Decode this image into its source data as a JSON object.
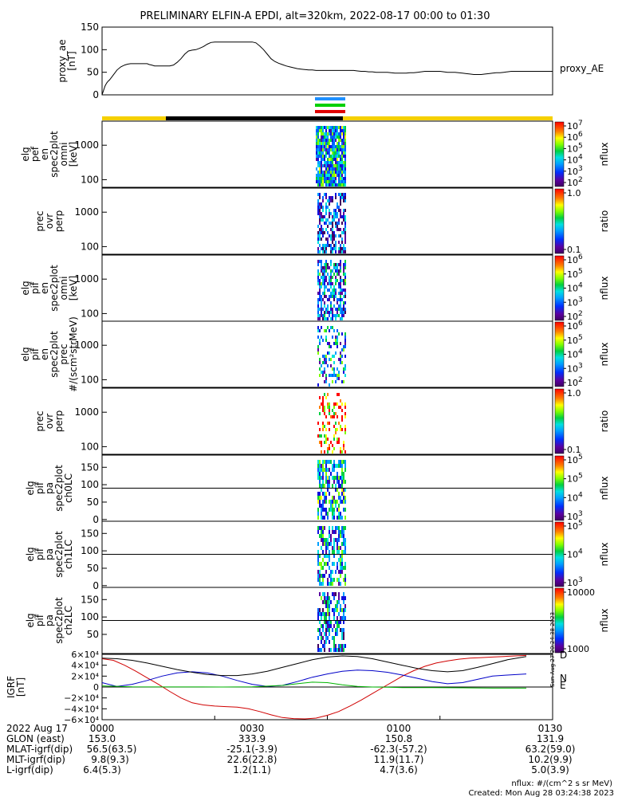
{
  "title": "PRELIMINARY ELFIN-A EPDI, alt=320km, 2022-08-17 00:00 to 01:30",
  "chart_data": [
    {
      "panel": "proxy_ae",
      "type": "line",
      "ylabel": [
        "proxy_ae",
        "[nT]"
      ],
      "yticks": [
        "0",
        "50",
        "100",
        "150"
      ],
      "ylim": [
        0,
        150
      ],
      "legend": "proxy_AE",
      "series": [
        {
          "name": "proxy_AE",
          "x": [
            0,
            2,
            4,
            6,
            8,
            10,
            15,
            20,
            25,
            30,
            34,
            38,
            42,
            46,
            50,
            56,
            60,
            63,
            66,
            70,
            75,
            80,
            85,
            90,
            95,
            100,
            105,
            110,
            115,
            120,
            125,
            130,
            135,
            140,
            145,
            150,
            155,
            160,
            165,
            170,
            175,
            180,
            185,
            190,
            195,
            200,
            205,
            210,
            215,
            220,
            225,
            230,
            235,
            240,
            245,
            250,
            255,
            260,
            265,
            270,
            275,
            280,
            285,
            290,
            295,
            300,
            305,
            310,
            315,
            320,
            325,
            330,
            335,
            340,
            345,
            350,
            355,
            360,
            365,
            370,
            375,
            380,
            385,
            390,
            395,
            400,
            405,
            410,
            415,
            420,
            425,
            430,
            435,
            440,
            445,
            450,
            455,
            460,
            465,
            470,
            475,
            480,
            485,
            490,
            495,
            500,
            505,
            510,
            515,
            520,
            525,
            530,
            535,
            540,
            545,
            550,
            555,
            560,
            565,
            570,
            575,
            580,
            585,
            590,
            595,
            600
          ],
          "y": [
            0,
            10,
            20,
            26,
            30,
            33,
            44,
            55,
            62,
            66,
            68,
            69,
            69,
            69,
            69,
            69,
            69,
            67,
            66,
            64,
            64,
            64,
            64,
            64,
            66,
            72,
            80,
            90,
            97,
            99,
            100,
            103,
            107,
            112,
            116,
            117,
            117,
            117,
            117,
            117,
            117,
            117,
            117,
            117,
            117,
            117,
            115,
            108,
            100,
            90,
            80,
            74,
            70,
            67,
            64,
            62,
            60,
            58,
            57,
            56,
            55,
            55,
            54,
            54,
            54,
            54,
            54,
            54,
            54,
            54,
            54,
            54,
            54,
            53,
            52,
            52,
            51,
            51,
            50,
            50,
            50,
            50,
            49,
            48,
            48,
            48,
            48,
            49,
            49,
            50,
            51,
            52,
            52,
            52,
            52,
            52,
            51,
            50,
            50,
            50,
            49,
            48,
            47,
            46,
            45,
            45,
            45,
            46,
            47,
            48,
            49,
            49,
            50,
            51,
            52,
            52,
            52,
            52,
            52,
            52,
            52,
            52,
            52,
            52,
            52,
            52
          ]
        }
      ]
    },
    {
      "panel": "elg_pef_en_spec2plot_omni",
      "type": "heatmap",
      "ylabel": [
        "elg",
        "pef",
        "en",
        "spec2plot",
        "omni",
        "[keV]"
      ],
      "yticks": [
        "100",
        "1000"
      ],
      "colorbar": {
        "label": "nflux",
        "ticks": [
          "10^2",
          "10^3",
          "10^4",
          "10^5",
          "10^6",
          "10^7"
        ]
      }
    },
    {
      "panel": "prec_ovr_perp_1",
      "type": "heatmap",
      "ylabel": [
        "prec",
        "ovr",
        "perp"
      ],
      "yticks": [
        "100",
        "1000"
      ],
      "colorbar": {
        "label": "ratio",
        "ticks": [
          "0.1",
          "1.0"
        ]
      }
    },
    {
      "panel": "elg_pif_en_spec2plot_omni",
      "type": "heatmap",
      "ylabel": [
        "elg",
        "pif",
        "en",
        "spec2plot",
        "omni",
        "[keV]"
      ],
      "yticks": [
        "100",
        "1000"
      ],
      "colorbar": {
        "label": "nflux",
        "ticks": [
          "10^2",
          "10^3",
          "10^4",
          "10^5",
          "10^6"
        ]
      }
    },
    {
      "panel": "elg_pif_en_spec2plot_prec",
      "type": "heatmap",
      "ylabel": [
        "elg",
        "pif",
        "en",
        "spec2plot",
        "prec",
        "#/(scm²strMeV)"
      ],
      "yticks": [
        "100",
        "1000"
      ],
      "colorbar": {
        "label": "nflux",
        "ticks": [
          "10^2",
          "10^3",
          "10^4",
          "10^5",
          "10^6"
        ]
      }
    },
    {
      "panel": "prec_ovr_perp_2",
      "type": "heatmap",
      "ylabel": [
        "prec",
        "ovr",
        "perp"
      ],
      "yticks": [
        "100",
        "1000"
      ],
      "colorbar": {
        "label": "ratio",
        "ticks": [
          "0.1",
          "1.0"
        ]
      }
    },
    {
      "panel": "elg_pif_pa_spec2plot_ch0LC",
      "type": "heatmap",
      "ylabel": [
        "elg",
        "pif",
        "pa",
        "spec2plot",
        "ch0LC"
      ],
      "yticks": [
        "0",
        "50",
        "100",
        "150"
      ],
      "colorbar": {
        "label": "nflux",
        "ticks": [
          "10^3",
          "10^4",
          "10^5",
          "10^5"
        ]
      }
    },
    {
      "panel": "elg_pif_pa_spec2plot_ch1LC",
      "type": "heatmap",
      "ylabel": [
        "elg",
        "pif",
        "pa",
        "spec2plot",
        "ch1LC"
      ],
      "yticks": [
        "0",
        "50",
        "100",
        "150"
      ],
      "colorbar": {
        "label": "nflux",
        "ticks": [
          "10^3",
          "10^4",
          "10^5"
        ]
      }
    },
    {
      "panel": "elg_pif_pa_spec2plot_ch2LC",
      "type": "heatmap",
      "ylabel": [
        "elg",
        "pif",
        "pa",
        "spec2plot",
        "ch2LC"
      ],
      "yticks": [
        "50",
        "100",
        "150"
      ],
      "colorbar": {
        "label": "nflux",
        "ticks": [
          "1000",
          "10000"
        ]
      }
    },
    {
      "panel": "IGRF",
      "type": "line",
      "ylabel": [
        "IGRF",
        "[nT]"
      ],
      "yticks": [
        "−6×10⁴",
        "−4×10⁴",
        "−2×10⁴",
        "0",
        "2×10⁴",
        "4×10⁴",
        "6×10⁴"
      ],
      "ylim": [
        -60000,
        60000
      ],
      "legend": [
        "D",
        "N",
        "E"
      ],
      "series": [
        {
          "name": "D",
          "color": "#d00000",
          "x": [
            0,
            15,
            30,
            45,
            60,
            75,
            90,
            105,
            120,
            135,
            150,
            165,
            180,
            195,
            210,
            225,
            240,
            255,
            270,
            285,
            300,
            315,
            330,
            345,
            360,
            375,
            390,
            400,
            415,
            430,
            445,
            460,
            475,
            490,
            505,
            520,
            535,
            550,
            565
          ],
          "y": [
            52000,
            49000,
            40000,
            29000,
            17000,
            5000,
            -8000,
            -20000,
            -29000,
            -33000,
            -35000,
            -36000,
            -37000,
            -40000,
            -45000,
            -51000,
            -56000,
            -58000,
            -58500,
            -57000,
            -52000,
            -45000,
            -35000,
            -24000,
            -12000,
            0,
            12000,
            20000,
            30000,
            38000,
            44000,
            48000,
            51000,
            53000,
            54000,
            55000,
            56000,
            57000,
            58000
          ]
        },
        {
          "name": "N",
          "color": "#0000c8",
          "x": [
            0,
            20,
            40,
            60,
            80,
            100,
            120,
            140,
            160,
            180,
            200,
            220,
            240,
            260,
            280,
            300,
            320,
            340,
            360,
            380,
            400,
            420,
            440,
            460,
            480,
            500,
            520,
            540,
            565
          ],
          "y": [
            8000,
            1000,
            5000,
            12000,
            20000,
            26000,
            28000,
            26000,
            20000,
            12000,
            5000,
            1000,
            3000,
            10000,
            18000,
            24000,
            29000,
            31000,
            30000,
            27000,
            22000,
            16000,
            10000,
            6000,
            8000,
            14000,
            20000,
            22000,
            24000
          ]
        },
        {
          "name": "E",
          "color": "#00b400",
          "x": [
            0,
            40,
            80,
            120,
            160,
            200,
            240,
            260,
            280,
            300,
            320,
            340,
            360,
            380,
            400,
            440,
            480,
            520,
            565
          ],
          "y": [
            2000,
            500,
            200,
            100,
            0,
            500,
            3000,
            6000,
            9000,
            8000,
            4000,
            1000,
            0,
            -500,
            -1000,
            -1000,
            -1500,
            -2000,
            -2000
          ]
        },
        {
          "name": "",
          "color": "#000000",
          "x": [
            0,
            20,
            40,
            60,
            80,
            100,
            120,
            140,
            160,
            180,
            200,
            220,
            240,
            260,
            280,
            300,
            320,
            340,
            360,
            380,
            400,
            420,
            440,
            460,
            480,
            500,
            520,
            540,
            565
          ],
          "y": [
            53000,
            52000,
            49000,
            44000,
            38000,
            32000,
            27000,
            23000,
            21000,
            21000,
            24000,
            29000,
            36000,
            43000,
            50000,
            55000,
            57000,
            56000,
            52000,
            46000,
            40000,
            34000,
            30000,
            28000,
            30000,
            36000,
            43000,
            50000,
            56000
          ]
        }
      ]
    }
  ],
  "footer": {
    "rows": [
      {
        "label": "2022 Aug 17",
        "values": [
          "0000",
          "0030",
          "0100",
          "0130"
        ]
      },
      {
        "label": "GLON (east)",
        "values": [
          "153.0",
          "333.9",
          "150.8",
          "131.9"
        ]
      },
      {
        "label": "MLAT-igrf(dip)",
        "values": [
          "56.5(63.5)",
          "-25.1(-3.9)",
          "-62.3(-57.2)",
          "63.2(59.0)"
        ]
      },
      {
        "label": "MLT-igrf(dip)",
        "values": [
          "9.8(9.3)",
          "22.6(22.8)",
          "11.9(11.7)",
          "10.2(9.9)"
        ]
      },
      {
        "label": "L-igrf(dip)",
        "values": [
          "6.4(5.3)",
          "1.2(1.1)",
          "4.7(3.6)",
          "5.0(3.9)"
        ]
      }
    ],
    "units": "nflux: #/(cm^2 s sr MeV)",
    "created": "Created: Mon Aug 28 03:24:38 2023",
    "side_stamp": "Sun Aug 27 20:24:38 2023"
  }
}
